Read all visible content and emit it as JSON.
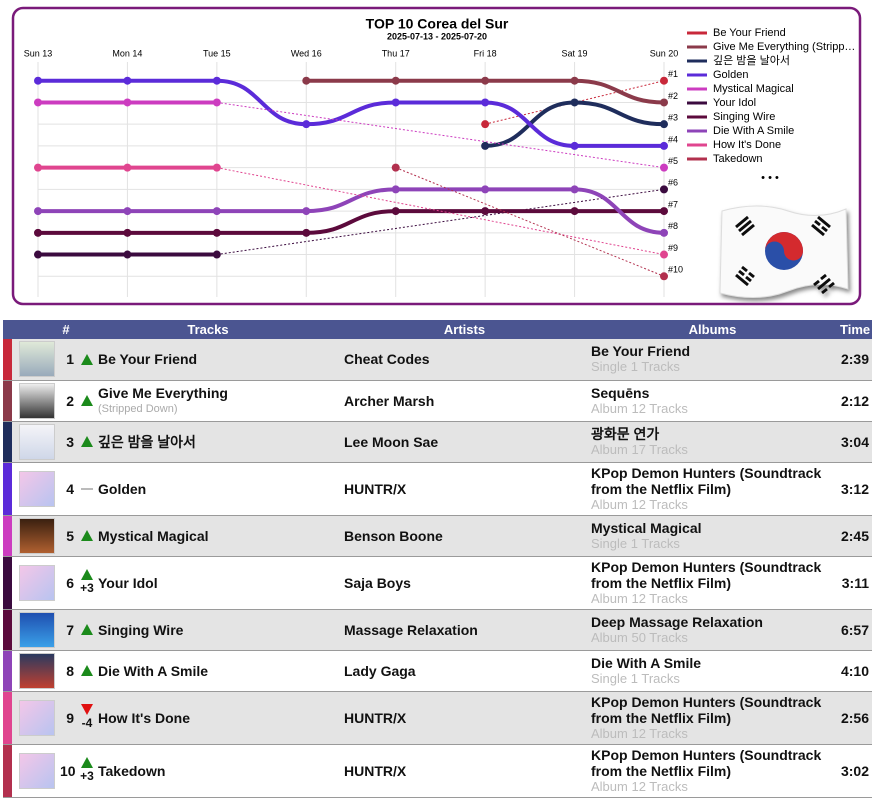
{
  "chart_data": {
    "type": "bump",
    "title": "TOP 10 Corea del Sur",
    "subtitle": "2025-07-13 - 2025-07-20",
    "categories": [
      "Sun 13",
      "Mon 14",
      "Tue 15",
      "Wed 16",
      "Thu 17",
      "Fri 18",
      "Sat 19",
      "Sun 20"
    ],
    "ylim": [
      0,
      11
    ],
    "y_reversed": true,
    "yticks": [
      {
        "value": 1,
        "label": "#1"
      },
      {
        "value": 2,
        "label": "#2"
      },
      {
        "value": 3,
        "label": "#3"
      },
      {
        "value": 4,
        "label": "#4"
      },
      {
        "value": 5,
        "label": "#5"
      },
      {
        "value": 6,
        "label": "#6"
      },
      {
        "value": 7,
        "label": "#7"
      },
      {
        "value": 8,
        "label": "#8"
      },
      {
        "value": 9,
        "label": "#9"
      },
      {
        "value": 10,
        "label": "#10"
      }
    ],
    "grid": true,
    "legend_more": "• • •",
    "series": [
      {
        "name": "Be Your Friend",
        "color": "#c8283a",
        "values": [
          null,
          null,
          null,
          null,
          null,
          3,
          null,
          1
        ]
      },
      {
        "name": "Give Me Everything (Stripp…",
        "color": "#8b3a4a",
        "values": [
          null,
          null,
          null,
          1,
          1,
          1,
          1,
          2
        ]
      },
      {
        "name": "깊은 밤을 날아서",
        "color": "#1f2d5c",
        "values": [
          null,
          null,
          null,
          null,
          null,
          4,
          2,
          3
        ]
      },
      {
        "name": "Golden",
        "color": "#5b2bd9",
        "values": [
          1,
          1,
          1,
          3,
          2,
          2,
          4,
          4
        ]
      },
      {
        "name": "Mystical Magical",
        "color": "#cc3cc0",
        "values": [
          2,
          2,
          2,
          null,
          null,
          null,
          null,
          5
        ]
      },
      {
        "name": "Your Idol",
        "color": "#3b0b3f",
        "values": [
          9,
          9,
          9,
          null,
          null,
          null,
          null,
          6
        ]
      },
      {
        "name": "Singing Wire",
        "color": "#5c0a3c",
        "values": [
          8,
          8,
          8,
          8,
          7,
          7,
          7,
          7
        ]
      },
      {
        "name": "Die With A Smile",
        "color": "#8e44b8",
        "values": [
          7,
          7,
          7,
          7,
          6,
          6,
          6,
          8
        ]
      },
      {
        "name": "How It's Done",
        "color": "#e0458f",
        "values": [
          5,
          5,
          5,
          null,
          null,
          null,
          null,
          9
        ]
      },
      {
        "name": "Takedown",
        "color": "#b2304e",
        "values": [
          null,
          null,
          null,
          null,
          5,
          null,
          null,
          10
        ]
      }
    ]
  },
  "table": {
    "headers": [
      "#",
      "Tracks",
      "Artists",
      "Albums",
      "Time"
    ],
    "rows": [
      {
        "rank": 1,
        "trend": "up",
        "track": "Be Your Friend",
        "artist": "Cheat Codes",
        "album": "Be Your Friend",
        "album_info": "Single 1 Tracks",
        "time": "2:39"
      },
      {
        "rank": 2,
        "trend": "up",
        "track": "Give Me Everything",
        "track_info": "(Stripped Down)",
        "artist": "Archer Marsh",
        "album": "Sequēns",
        "album_info": "Album 12 Tracks",
        "time": "2:12"
      },
      {
        "rank": 3,
        "trend": "up",
        "track": "깊은 밤을 날아서",
        "artist": "Lee Moon Sae",
        "album": "광화문 연가",
        "album_info": "Album 17 Tracks",
        "time": "3:04"
      },
      {
        "rank": 4,
        "trend": "same",
        "track": "Golden",
        "artist": "HUNTR/X",
        "album": "KPop Demon Hunters (Soundtrack from the Netflix Film)",
        "album_info": "Album 12 Tracks",
        "time": "3:12"
      },
      {
        "rank": 5,
        "trend": "up",
        "track": "Mystical Magical",
        "artist": "Benson Boone",
        "album": "Mystical Magical",
        "album_info": "Single 1 Tracks",
        "time": "2:45"
      },
      {
        "rank": 6,
        "trend": "up",
        "change": "+3",
        "track": "Your Idol",
        "artist": "Saja Boys",
        "album": "KPop Demon Hunters (Soundtrack from the Netflix Film)",
        "album_info": "Album 12 Tracks",
        "time": "3:11"
      },
      {
        "rank": 7,
        "trend": "up",
        "track": "Singing Wire",
        "artist": "Massage Relaxation",
        "album": "Deep Massage Relaxation",
        "album_info": "Album 50 Tracks",
        "time": "6:57"
      },
      {
        "rank": 8,
        "trend": "up",
        "track": "Die With A Smile",
        "artist": "Lady Gaga",
        "album": "Die With A Smile",
        "album_info": "Single 1 Tracks",
        "time": "4:10"
      },
      {
        "rank": 9,
        "trend": "down",
        "change": "-4",
        "track": "How It's Done",
        "artist": "HUNTR/X",
        "album": "KPop Demon Hunters (Soundtrack from the Netflix Film)",
        "album_info": "Album 12 Tracks",
        "time": "2:56"
      },
      {
        "rank": 10,
        "trend": "up",
        "change": "+3",
        "track": "Takedown",
        "artist": "HUNTR/X",
        "album": "KPop Demon Hunters (Soundtrack from the Netflix Film)",
        "album_info": "Album 12 Tracks",
        "time": "3:02"
      }
    ]
  }
}
